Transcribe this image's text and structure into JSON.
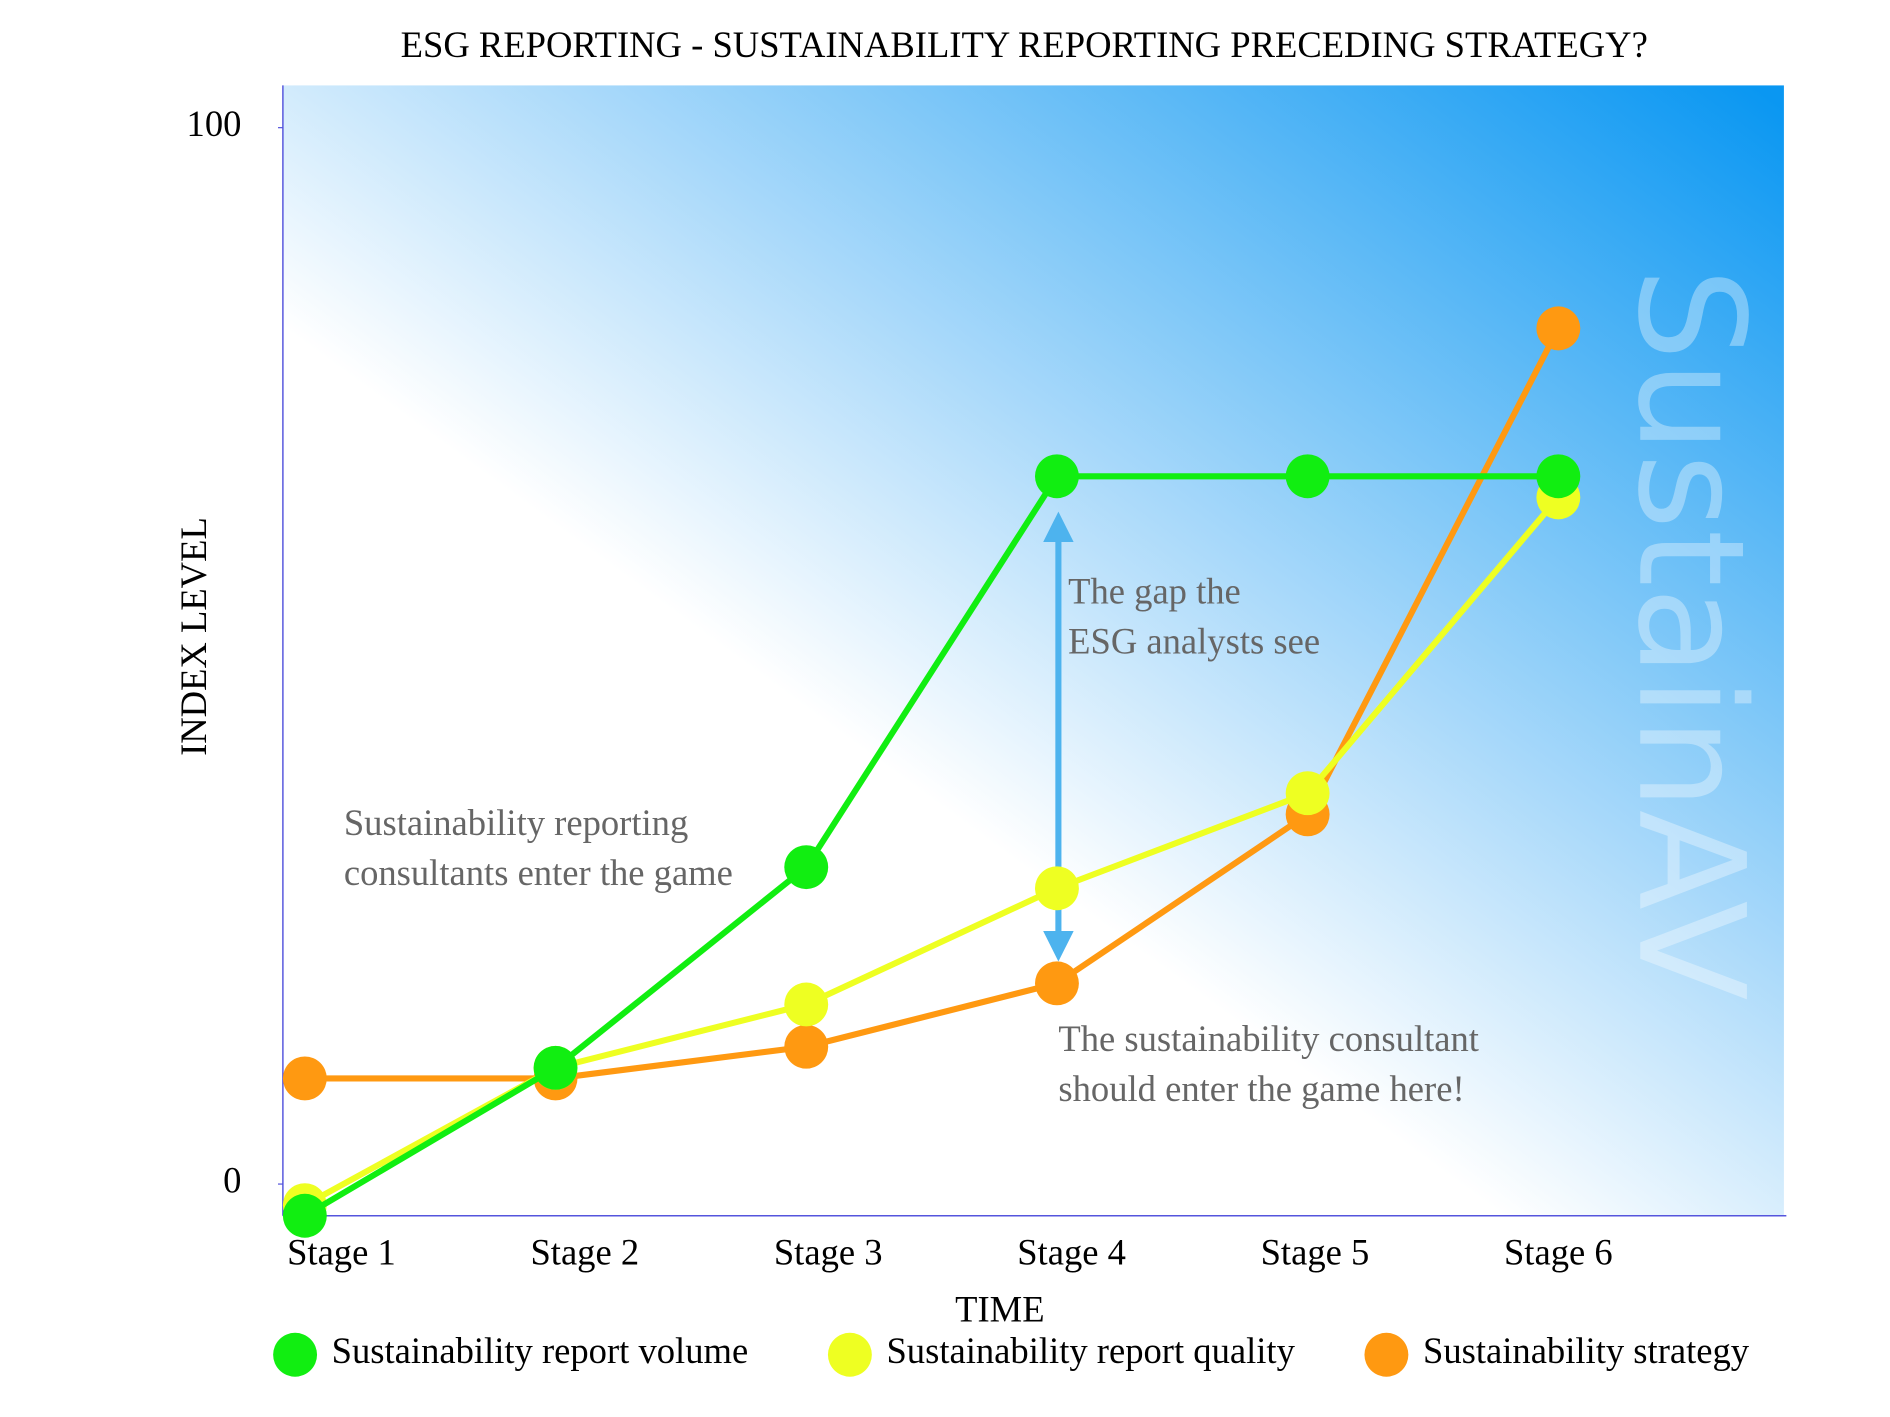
{
  "chart_data": {
    "type": "line",
    "title": "ESG REPORTING - SUSTAINABILITY REPORTING PRECEDING STRATEGY?",
    "x_label": "TIME",
    "y_label": "INDEX LEVEL",
    "categories": [
      "Stage 1",
      "Stage 2",
      "Stage 3",
      "Stage 4",
      "Stage 5",
      "Stage 6"
    ],
    "series": [
      {
        "name": "Sustainability report volume",
        "color": "#11ee11",
        "values": [
          -3,
          11,
          30,
          67,
          67,
          67
        ]
      },
      {
        "name": "Sustainability report quality",
        "color": "#eeff22",
        "values": [
          -2,
          11,
          17,
          28,
          37,
          65
        ]
      },
      {
        "name": "Sustainability strategy",
        "color": "#ff9911",
        "values": [
          10,
          10,
          13,
          19,
          35,
          81
        ]
      }
    ],
    "ylim": [
      -3,
      104
    ],
    "yticks": [
      0,
      100
    ],
    "legend": "bottom",
    "annotations": [
      [
        "Sustainability reporting",
        "consultants enter the game"
      ],
      [
        "The gap the",
        "ESG analysts see"
      ],
      [
        "The sustainability consultant",
        "should enter the game here!"
      ]
    ],
    "watermark": "SustainAV"
  }
}
